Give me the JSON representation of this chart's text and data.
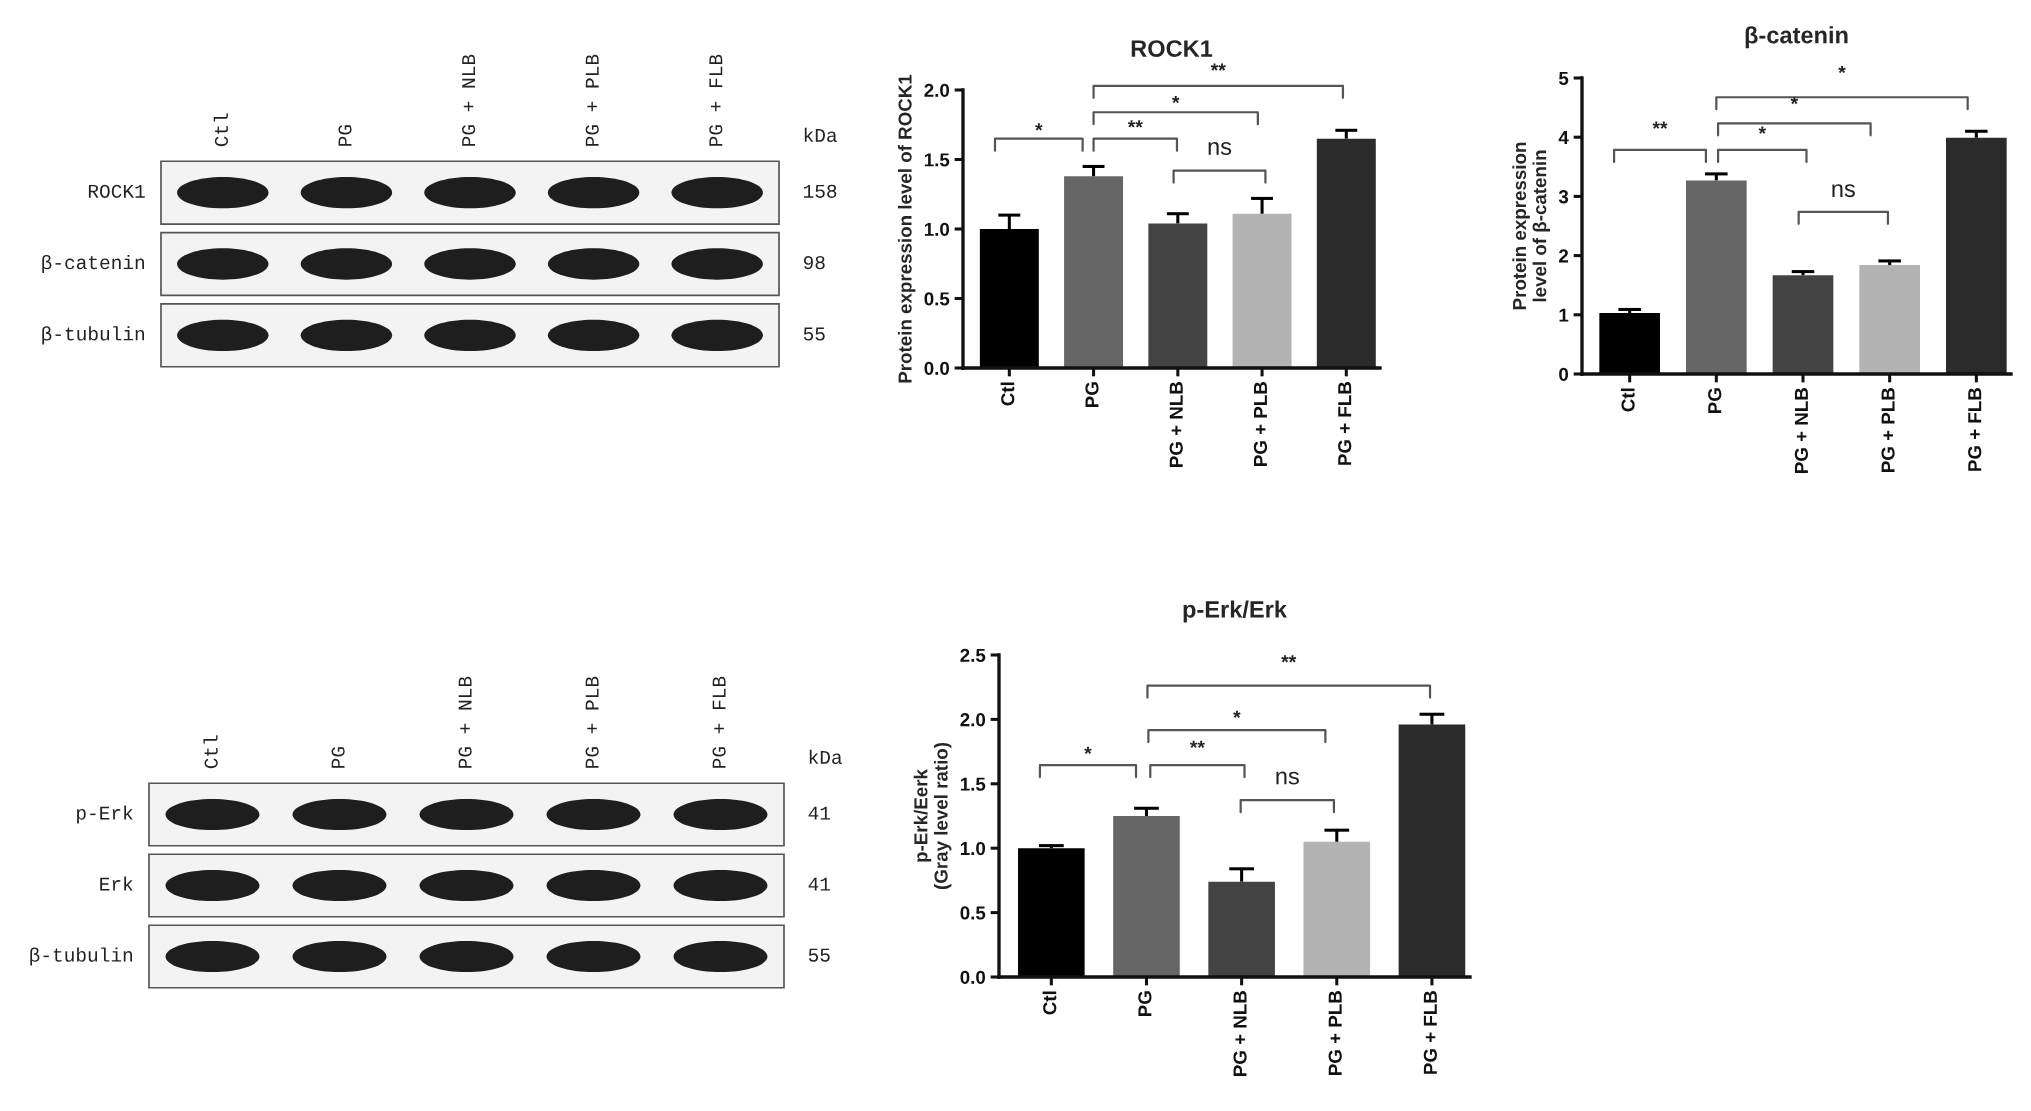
{
  "chart_data": [
    {
      "type": "other",
      "categories": [
        "Ctl",
        "PG",
        "PG + NLB",
        "PG + PLB",
        "PG + FLB"
      ],
      "y_categories": [
        "ROCK1",
        "β-catenin",
        "β-tubulin"
      ],
      "y2_categories": [
        "158",
        "98",
        "55"
      ],
      "annotations": [
        "kDa"
      ]
    },
    {
      "type": "bar",
      "title": "ROCK1",
      "ylabel": "Protein expression level of ROCK1",
      "categories": [
        "Ctl",
        "PG",
        "PG + NLB",
        "PG + PLB",
        "PG + FLB"
      ],
      "values": [
        1.0,
        1.38,
        1.04,
        1.11,
        1.65
      ],
      "errors": [
        [
          1.0,
          1.1
        ],
        [
          1.38,
          1.45
        ],
        [
          1.04,
          1.11
        ],
        [
          1.11,
          1.22
        ],
        [
          1.65,
          1.71
        ]
      ],
      "colors": [
        "#000000",
        "#666666",
        "#434343",
        "#b3b3b3",
        "#2b2b2b"
      ],
      "ylim": [
        0,
        2
      ],
      "yticks": [
        {
          "value": 0,
          "label": "0.0"
        },
        {
          "value": 0.5,
          "label": "0.5"
        },
        {
          "value": 1,
          "label": "1.0"
        },
        {
          "value": 1.5,
          "label": "1.5"
        },
        {
          "value": 2,
          "label": "2.0"
        }
      ],
      "annotations": [
        "*",
        "**",
        "*",
        "**",
        "ns"
      ]
    },
    {
      "type": "bar",
      "title": "β-catenin",
      "ylabel": "Protein expression\nlevel of β-catenin",
      "categories": [
        "Ctl",
        "PG",
        "PG + NLB",
        "PG + PLB",
        "PG + FLB"
      ],
      "values": [
        1.03,
        3.27,
        1.67,
        1.84,
        3.99
      ],
      "errors": [
        [
          1.03,
          1.09
        ],
        [
          3.27,
          3.38
        ],
        [
          1.67,
          1.73
        ],
        [
          1.84,
          1.91
        ],
        [
          3.99,
          4.1
        ]
      ],
      "colors": [
        "#000000",
        "#666666",
        "#434343",
        "#b3b3b3",
        "#2b2b2b"
      ],
      "ylim": [
        0,
        5
      ],
      "yticks": [
        0,
        1,
        2,
        3,
        4,
        5
      ],
      "annotations": [
        "**",
        "*",
        "*",
        "*",
        "ns"
      ]
    },
    {
      "type": "other",
      "categories": [
        "Ctl",
        "PG",
        "PG + NLB",
        "PG + PLB",
        "PG + FLB"
      ],
      "y_categories": [
        "p-Erk",
        "Erk",
        "β-tubulin"
      ],
      "y2_categories": [
        "41",
        "41",
        "55"
      ],
      "annotations": [
        "kDa"
      ]
    },
    {
      "type": "bar",
      "title": "p-Erk/Erk",
      "ylabel": "p-Erk/Eerk\n(Gray level ratio)",
      "categories": [
        "Ctl",
        "PG",
        "PG + NLB",
        "PG + PLB",
        "PG + FLB"
      ],
      "values": [
        1.0,
        1.25,
        0.74,
        1.05,
        1.96
      ],
      "errors": [
        [
          1.0,
          1.02
        ],
        [
          1.25,
          1.31
        ],
        [
          0.74,
          0.84
        ],
        [
          1.05,
          1.14
        ],
        [
          1.96,
          2.04
        ]
      ],
      "colors": [
        "#000000",
        "#666666",
        "#434343",
        "#b3b3b3",
        "#2b2b2b"
      ],
      "ylim": [
        0,
        2.5
      ],
      "yticks": [
        {
          "value": 0,
          "label": "0.0"
        },
        {
          "value": 0.5,
          "label": "0.5"
        },
        {
          "value": 1,
          "label": "1.0"
        },
        {
          "value": 1.5,
          "label": "1.5"
        },
        {
          "value": 2,
          "label": "2.0"
        },
        {
          "value": 2.5,
          "label": "2.5"
        }
      ],
      "annotations": [
        "*",
        "**",
        "*",
        "**",
        "ns"
      ]
    }
  ]
}
